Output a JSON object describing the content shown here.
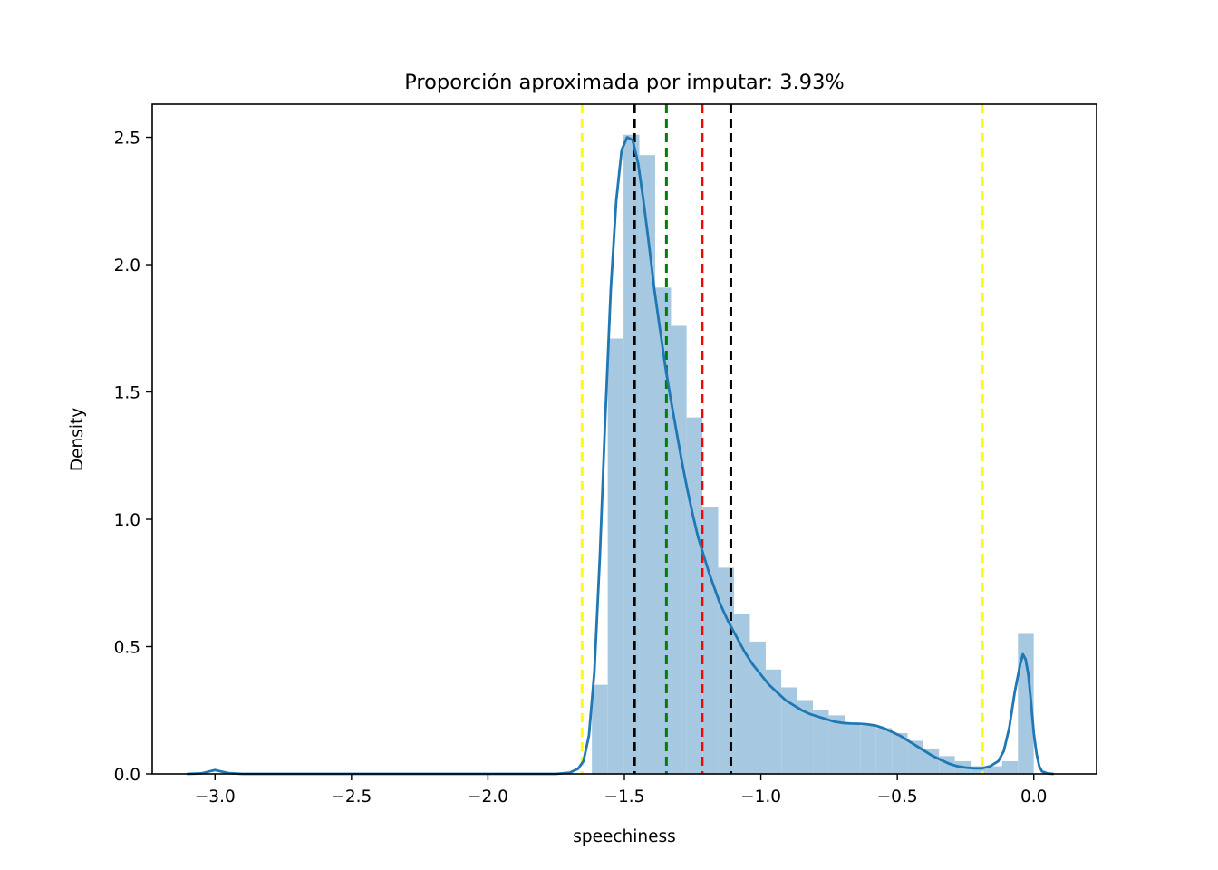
{
  "chart_data": {
    "type": "histogram",
    "title": "Proporción aproximada por imputar: 3.93%",
    "xlabel": "speechiness",
    "ylabel": "Density",
    "xlim": [
      -3.23,
      0.23
    ],
    "ylim": [
      0.0,
      2.63
    ],
    "x_ticks": [
      -3.0,
      -2.5,
      -2.0,
      -1.5,
      -1.0,
      -0.5,
      0.0
    ],
    "x_tick_labels": [
      "−3.0",
      "−2.5",
      "−2.0",
      "−1.5",
      "−1.0",
      "−0.5",
      "0.0"
    ],
    "y_ticks": [
      0.0,
      0.5,
      1.0,
      1.5,
      2.0,
      2.5
    ],
    "y_tick_labels": [
      "0.0",
      "0.5",
      "1.0",
      "1.5",
      "2.0",
      "2.5"
    ],
    "grid": false,
    "histogram": {
      "color": "#a6c8e0",
      "bin_width": 0.0578,
      "bins": [
        {
          "x0": -1.619,
          "height": 0.35
        },
        {
          "x0": -1.561,
          "height": 1.71
        },
        {
          "x0": -1.503,
          "height": 2.51
        },
        {
          "x0": -1.445,
          "height": 2.43
        },
        {
          "x0": -1.387,
          "height": 1.91
        },
        {
          "x0": -1.33,
          "height": 1.76
        },
        {
          "x0": -1.272,
          "height": 1.4
        },
        {
          "x0": -1.214,
          "height": 1.05
        },
        {
          "x0": -1.156,
          "height": 0.81
        },
        {
          "x0": -1.098,
          "height": 0.63
        },
        {
          "x0": -1.04,
          "height": 0.52
        },
        {
          "x0": -0.983,
          "height": 0.41
        },
        {
          "x0": -0.925,
          "height": 0.34
        },
        {
          "x0": -0.867,
          "height": 0.29
        },
        {
          "x0": -0.809,
          "height": 0.25
        },
        {
          "x0": -0.751,
          "height": 0.23
        },
        {
          "x0": -0.694,
          "height": 0.2
        },
        {
          "x0": -0.636,
          "height": 0.19
        },
        {
          "x0": -0.578,
          "height": 0.18
        },
        {
          "x0": -0.52,
          "height": 0.16
        },
        {
          "x0": -0.462,
          "height": 0.13
        },
        {
          "x0": -0.405,
          "height": 0.1
        },
        {
          "x0": -0.347,
          "height": 0.07
        },
        {
          "x0": -0.289,
          "height": 0.05
        },
        {
          "x0": -0.231,
          "height": 0.03
        },
        {
          "x0": -0.173,
          "height": 0.03
        },
        {
          "x0": -0.116,
          "height": 0.05
        },
        {
          "x0": -0.058,
          "height": 0.55
        }
      ]
    },
    "kde": {
      "color": "#1f77b4",
      "x": [
        -3.1,
        -3.05,
        -3.02,
        -3.0,
        -2.98,
        -2.95,
        -2.9,
        -2.5,
        -2.0,
        -1.75,
        -1.7,
        -1.67,
        -1.65,
        -1.63,
        -1.61,
        -1.59,
        -1.57,
        -1.55,
        -1.53,
        -1.51,
        -1.49,
        -1.47,
        -1.45,
        -1.43,
        -1.41,
        -1.39,
        -1.37,
        -1.35,
        -1.33,
        -1.31,
        -1.29,
        -1.27,
        -1.25,
        -1.23,
        -1.21,
        -1.19,
        -1.17,
        -1.15,
        -1.12,
        -1.09,
        -1.06,
        -1.03,
        -1.0,
        -0.97,
        -0.94,
        -0.91,
        -0.88,
        -0.85,
        -0.82,
        -0.79,
        -0.76,
        -0.73,
        -0.7,
        -0.67,
        -0.64,
        -0.61,
        -0.58,
        -0.55,
        -0.52,
        -0.49,
        -0.46,
        -0.43,
        -0.4,
        -0.37,
        -0.34,
        -0.31,
        -0.28,
        -0.25,
        -0.22,
        -0.19,
        -0.16,
        -0.13,
        -0.11,
        -0.09,
        -0.07,
        -0.05,
        -0.04,
        -0.03,
        -0.02,
        -0.01,
        0.0,
        0.01,
        0.02,
        0.03,
        0.05,
        0.07
      ],
      "y": [
        0.0,
        0.002,
        0.01,
        0.015,
        0.01,
        0.003,
        0.0,
        0.0,
        0.0,
        0.0,
        0.005,
        0.02,
        0.05,
        0.15,
        0.4,
        0.85,
        1.4,
        1.9,
        2.25,
        2.45,
        2.5,
        2.49,
        2.4,
        2.25,
        2.08,
        1.9,
        1.75,
        1.6,
        1.47,
        1.35,
        1.23,
        1.12,
        1.02,
        0.93,
        0.86,
        0.79,
        0.73,
        0.67,
        0.6,
        0.54,
        0.48,
        0.43,
        0.39,
        0.35,
        0.32,
        0.29,
        0.27,
        0.25,
        0.235,
        0.225,
        0.215,
        0.205,
        0.2,
        0.198,
        0.197,
        0.195,
        0.19,
        0.18,
        0.165,
        0.15,
        0.13,
        0.11,
        0.09,
        0.07,
        0.055,
        0.04,
        0.03,
        0.025,
        0.022,
        0.022,
        0.03,
        0.05,
        0.09,
        0.18,
        0.32,
        0.43,
        0.47,
        0.45,
        0.39,
        0.28,
        0.16,
        0.08,
        0.03,
        0.01,
        0.002,
        0.0
      ]
    },
    "vlines": [
      {
        "x": -1.655,
        "color": "#ffff00"
      },
      {
        "x": -1.463,
        "color": "#000000"
      },
      {
        "x": -1.346,
        "color": "#008000"
      },
      {
        "x": -1.215,
        "color": "#ff0000"
      },
      {
        "x": -1.11,
        "color": "#000000"
      },
      {
        "x": -0.188,
        "color": "#ffff00"
      }
    ]
  }
}
